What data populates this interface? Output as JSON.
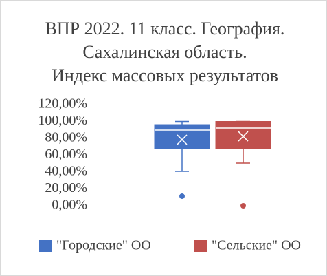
{
  "chart_data": {
    "type": "box",
    "title": [
      "ВПР 2022. 11 класс. География.",
      "Сахалинская область.",
      "Индекс массовых результатов"
    ],
    "ylim": [
      0,
      120
    ],
    "yticks": [
      {
        "value": 0,
        "label": "0,00%"
      },
      {
        "value": 20,
        "label": "20,00%"
      },
      {
        "value": 40,
        "label": "40,00%"
      },
      {
        "value": 60,
        "label": "60,00%"
      },
      {
        "value": 80,
        "label": "80,00%"
      },
      {
        "value": 100,
        "label": "100,00%"
      },
      {
        "value": 120,
        "label": "120,00%"
      }
    ],
    "legend": "bottom",
    "series": [
      {
        "name": "\"Городские\" ОО",
        "color": "#4472c4",
        "min": 40.8,
        "q1": 67.8,
        "median": 89.8,
        "q3": 96.3,
        "max": 100,
        "mean": 78.4,
        "outliers": [
          11.4
        ]
      },
      {
        "name": "\"Сельские\" ОО",
        "color": "#c0504d",
        "min": 50.6,
        "q1": 67.8,
        "median": 92.2,
        "q3": 100,
        "max": 100,
        "mean": 82.4,
        "outliers": [
          0
        ]
      }
    ]
  }
}
